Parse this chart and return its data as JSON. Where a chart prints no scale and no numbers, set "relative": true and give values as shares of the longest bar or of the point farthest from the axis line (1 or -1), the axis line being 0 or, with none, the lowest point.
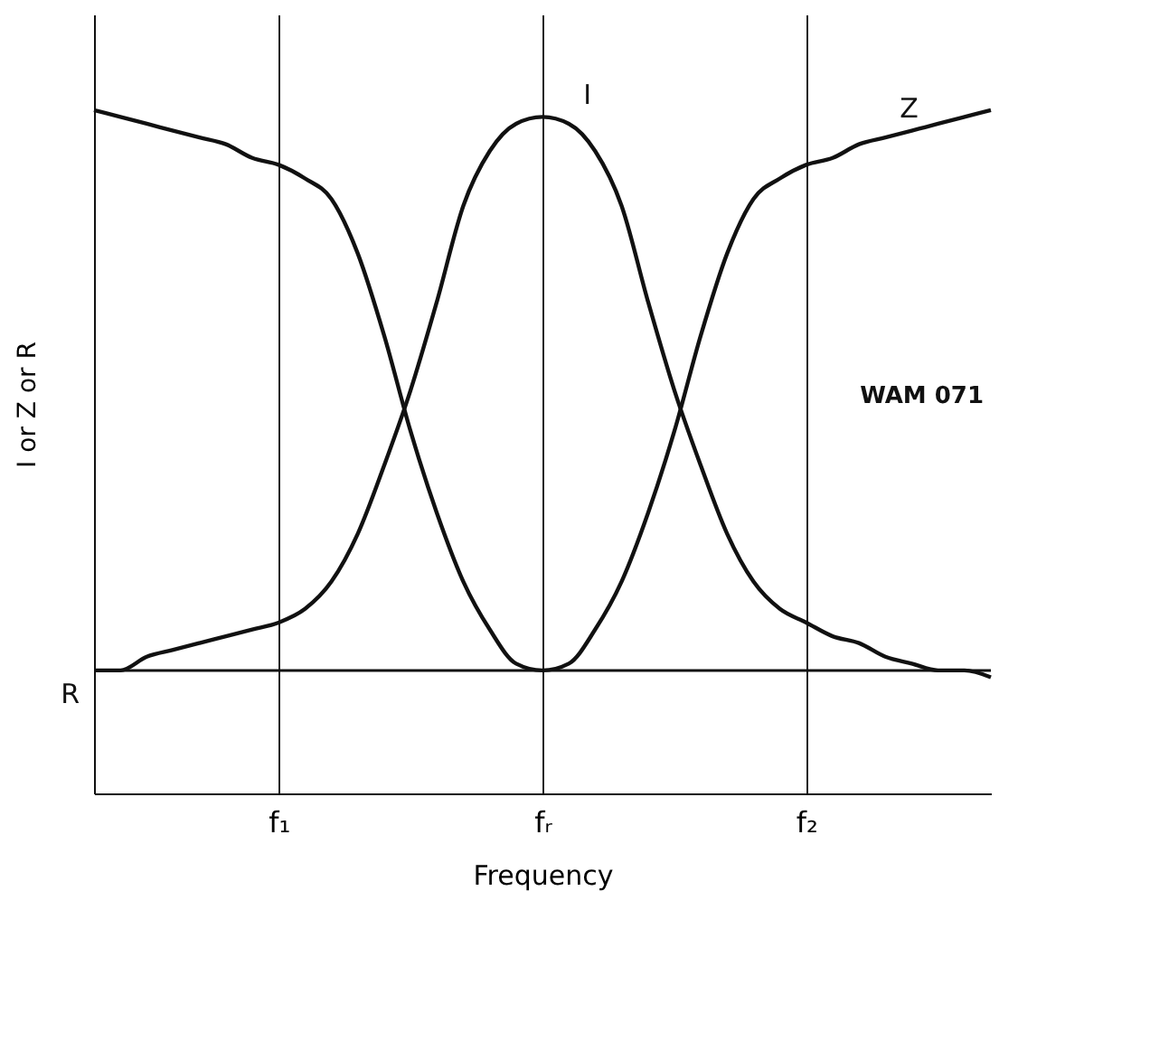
{
  "chart_data": {
    "type": "line",
    "relative": true,
    "xlabel": "Frequency",
    "ylabel": "I or Z or R",
    "categories": [
      null,
      null,
      null,
      null,
      null,
      null,
      null,
      "f₁",
      null,
      null,
      null,
      null,
      null,
      null,
      null,
      null,
      null,
      "fᵣ",
      null,
      null,
      null,
      null,
      null,
      null,
      null,
      null,
      null,
      "f₂",
      null,
      null,
      null,
      null,
      null,
      null,
      null
    ],
    "series": [
      {
        "name": "I",
        "color": "#111111",
        "values": [
          0.18,
          0.18,
          0.2,
          0.21,
          0.22,
          0.23,
          0.24,
          0.25,
          0.27,
          0.31,
          0.38,
          0.48,
          0.59,
          0.72,
          0.86,
          0.94,
          0.98,
          0.99,
          0.98,
          0.94,
          0.86,
          0.72,
          0.59,
          0.48,
          0.38,
          0.31,
          0.27,
          0.25,
          0.23,
          0.22,
          0.2,
          0.19,
          0.18,
          0.18,
          0.17
        ]
      },
      {
        "name": "Z",
        "color": "#111111",
        "values": [
          1.0,
          0.99,
          0.98,
          0.97,
          0.96,
          0.95,
          0.93,
          0.92,
          0.9,
          0.87,
          0.79,
          0.67,
          0.53,
          0.41,
          0.31,
          0.24,
          0.19,
          0.18,
          0.19,
          0.24,
          0.31,
          0.41,
          0.53,
          0.67,
          0.79,
          0.87,
          0.9,
          0.92,
          0.93,
          0.95,
          0.96,
          0.97,
          0.98,
          0.99,
          1.0
        ]
      }
    ],
    "ref_lines": [
      {
        "axis": "y",
        "value": 0.18,
        "label": "R"
      }
    ],
    "grid": "x",
    "legend": false,
    "line_style": "solid",
    "marker": "none",
    "annotations": [
      "WAM 071"
    ]
  }
}
